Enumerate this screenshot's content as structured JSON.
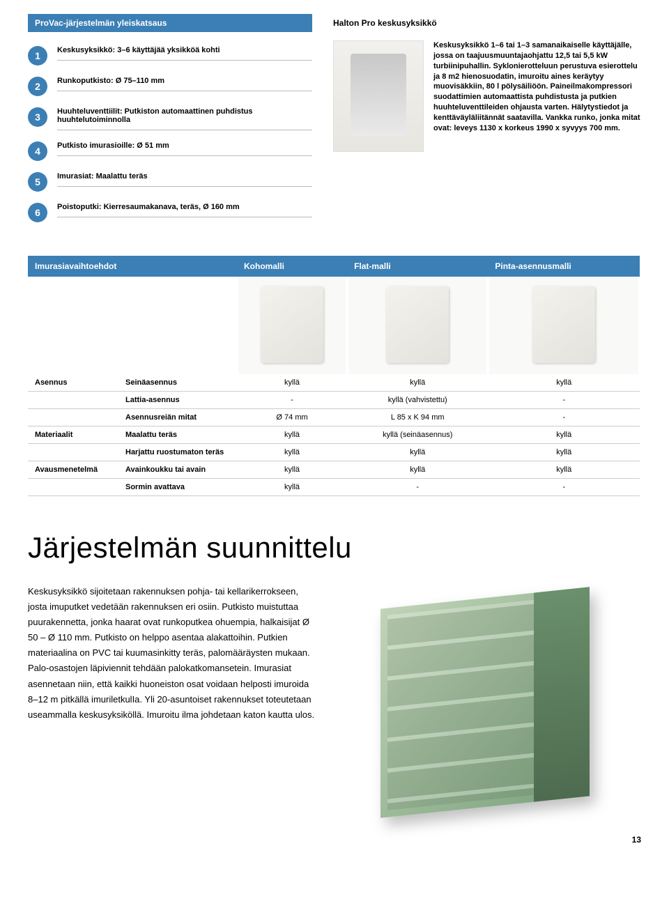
{
  "colors": {
    "brand_blue": "#3b7fb5",
    "text": "#000000",
    "border": "#cccccc",
    "bg": "#ffffff"
  },
  "top_left": {
    "header": "ProVac-järjestelmän yleiskatsaus",
    "items": [
      {
        "n": "1",
        "text": "Keskusyksikkö: 3–6 käyttäjää yksikköä kohti"
      },
      {
        "n": "2",
        "text": "Runkoputkisto: Ø 75–110 mm"
      },
      {
        "n": "3",
        "text": "Huuhteluventtiilit: Putkiston automaattinen puhdistus huuhtelutoiminnolla"
      },
      {
        "n": "4",
        "text": "Putkisto imurasioille: Ø 51 mm"
      },
      {
        "n": "5",
        "text": "Imurasiat: Maalattu teräs"
      },
      {
        "n": "6",
        "text": "Poistoputki: Kierresaumakanava, teräs, Ø 160 mm"
      }
    ]
  },
  "top_right": {
    "header": "Halton Pro keskusyksikkö",
    "body": "Keskusyksikkö 1–6 tai 1–3 samanaikaiselle käyttäjälle, jossa on taajuusmuuntajaohjattu 12,5 tai 5,5 kW turbiinipuhallin. Syklonierotteluun perustuva esierottelu ja 8 m2 hienosuodatin, imuroitu aines keräytyy muovisäkkiin, 80 l pölysäiliöön. Paineilmakompressori suodattimien automaattista puhdistusta ja putkien huuhteluventtileiden ohjausta varten. Hälytystiedot ja kenttäväyläliitännät saatavilla. Vankka runko, jonka mitat ovat: leveys 1130 x korkeus 1990 x syvyys 700 mm."
  },
  "table": {
    "headers": [
      "Imurasiavaihtoehdot",
      "",
      "Kohomalli",
      "Flat-malli",
      "Pinta-asennusmalli"
    ],
    "rows": [
      {
        "group": "Asennus",
        "sub": "Seinäasennus",
        "v": [
          "kyllä",
          "kyllä",
          "kyllä"
        ]
      },
      {
        "group": "",
        "sub": "Lattia-asennus",
        "v": [
          "-",
          "kyllä (vahvistettu)",
          "-"
        ]
      },
      {
        "group": "",
        "sub": "Asennusreiän mitat",
        "v": [
          "Ø 74 mm",
          "L 85 x K 94 mm",
          "-"
        ]
      },
      {
        "group": "Materiaalit",
        "sub": "Maalattu teräs",
        "v": [
          "kyllä",
          "kyllä (seinäasennus)",
          "kyllä"
        ]
      },
      {
        "group": "",
        "sub": "Harjattu ruostumaton teräs",
        "v": [
          "kyllä",
          "kyllä",
          "kyllä"
        ]
      },
      {
        "group": "Avausmenetelmä",
        "sub": "Avainkoukku tai avain",
        "v": [
          "kyllä",
          "kyllä",
          "kyllä"
        ]
      },
      {
        "group": "",
        "sub": "Sormin avattava",
        "v": [
          "kyllä",
          "-",
          "-"
        ]
      }
    ]
  },
  "design": {
    "title": "Järjestelmän suunnittelu",
    "body": "Keskusyksikkö sijoitetaan rakennuksen pohja- tai kellarikerrokseen, josta imuputket vedetään rakennuksen eri osiin. Putkisto muistuttaa puurakennetta, jonka haarat ovat runkoputkea ohuempia, halkaisijat Ø 50 – Ø 110 mm. Putkisto on helppo asentaa alakattoihin. Putkien materiaalina on PVC tai kuumasinkitty teräs, palomääräysten mukaan. Palo-osastojen läpiviennit tehdään palokatkomansetein. Imurasiat asennetaan niin, että kaikki huoneiston osat voidaan helposti imuroida 8–12 m pitkällä imuriletkulIa. Yli 20-asuntoiset rakennukset toteutetaan useammalla keskusyksiköllä. Imuroitu ilma johdetaan katon kautta ulos."
  },
  "page_number": "13",
  "fonts": {
    "body_pt": 11,
    "title_pt": 42,
    "header_pt": 12
  }
}
